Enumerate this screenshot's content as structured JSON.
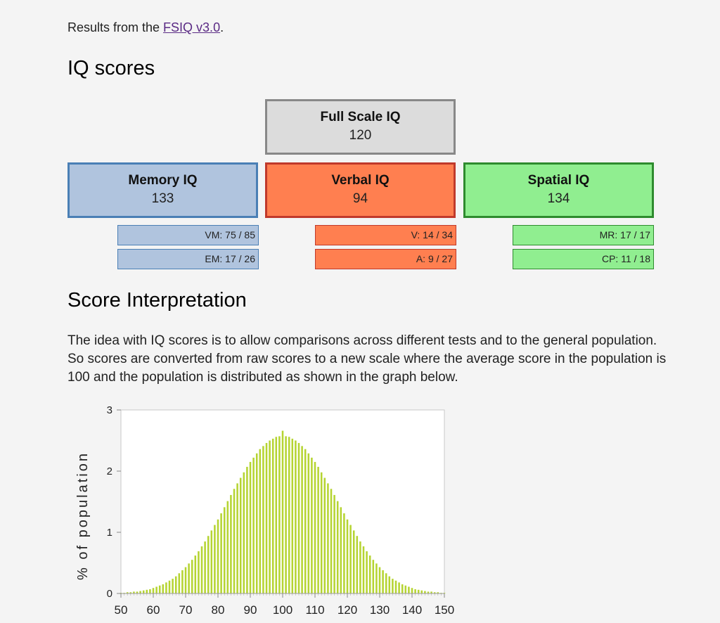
{
  "intro": {
    "prefix": "Results from the ",
    "link_text": "FSIQ v3.0",
    "suffix": "."
  },
  "headings": {
    "iq_scores": "IQ scores",
    "interpretation": "Score Interpretation"
  },
  "scores": {
    "full_scale": {
      "label": "Full Scale IQ",
      "value": "120"
    },
    "memory": {
      "label": "Memory IQ",
      "value": "133"
    },
    "verbal": {
      "label": "Verbal IQ",
      "value": "94"
    },
    "spatial": {
      "label": "Spatial IQ",
      "value": "134"
    }
  },
  "subscores": {
    "memory": [
      "VM: 75 / 85",
      "EM: 17 / 26"
    ],
    "verbal": [
      "V: 14 / 34",
      "A: 9 / 27"
    ],
    "spatial": [
      "MR: 17 / 17",
      "CP: 11 / 18"
    ]
  },
  "colors": {
    "memory_fill": "#b0c4de",
    "verbal_fill": "#ff7f50",
    "spatial_fill": "#90ee90",
    "fsiq_fill": "#dcdcdc",
    "bar": "#b5d431"
  },
  "paragraph": "The idea with IQ scores is to allow comparisons across different tests and to the general population. So scores are converted from raw scores to a new scale where the average score in the population is 100 and the population is distributed as shown in the graph below.",
  "chart_data": {
    "type": "bar",
    "title": "",
    "xlabel": "",
    "ylabel": "% of population",
    "xlim": [
      50,
      150
    ],
    "ylim": [
      0,
      3
    ],
    "x_ticks": [
      50,
      60,
      70,
      80,
      90,
      100,
      110,
      120,
      130,
      140,
      150
    ],
    "y_ticks": [
      0,
      1,
      2,
      3
    ],
    "distribution": {
      "mean": 100,
      "sd": 15
    },
    "x": [
      50,
      51,
      52,
      53,
      54,
      55,
      56,
      57,
      58,
      59,
      60,
      61,
      62,
      63,
      64,
      65,
      66,
      67,
      68,
      69,
      70,
      71,
      72,
      73,
      74,
      75,
      76,
      77,
      78,
      79,
      80,
      81,
      82,
      83,
      84,
      85,
      86,
      87,
      88,
      89,
      90,
      91,
      92,
      93,
      94,
      95,
      96,
      97,
      98,
      99,
      100,
      101,
      102,
      103,
      104,
      105,
      106,
      107,
      108,
      109,
      110,
      111,
      112,
      113,
      114,
      115,
      116,
      117,
      118,
      119,
      120,
      121,
      122,
      123,
      124,
      125,
      126,
      127,
      128,
      129,
      130,
      131,
      132,
      133,
      134,
      135,
      136,
      137,
      138,
      139,
      140,
      141,
      142,
      143,
      144,
      145,
      146,
      147,
      148,
      149,
      150
    ],
    "values": [
      0.01,
      0.01,
      0.02,
      0.02,
      0.03,
      0.03,
      0.04,
      0.05,
      0.06,
      0.07,
      0.09,
      0.11,
      0.13,
      0.15,
      0.18,
      0.21,
      0.24,
      0.28,
      0.33,
      0.38,
      0.43,
      0.49,
      0.55,
      0.62,
      0.69,
      0.77,
      0.85,
      0.94,
      1.03,
      1.12,
      1.21,
      1.31,
      1.41,
      1.51,
      1.61,
      1.71,
      1.8,
      1.89,
      1.98,
      2.07,
      2.15,
      2.22,
      2.29,
      2.36,
      2.41,
      2.46,
      2.5,
      2.53,
      2.56,
      2.57,
      2.66,
      2.57,
      2.56,
      2.53,
      2.5,
      2.46,
      2.41,
      2.36,
      2.29,
      2.22,
      2.15,
      2.07,
      1.98,
      1.89,
      1.8,
      1.71,
      1.61,
      1.51,
      1.41,
      1.31,
      1.21,
      1.12,
      1.03,
      0.94,
      0.85,
      0.77,
      0.69,
      0.62,
      0.55,
      0.49,
      0.43,
      0.38,
      0.33,
      0.28,
      0.24,
      0.21,
      0.18,
      0.15,
      0.13,
      0.11,
      0.09,
      0.07,
      0.06,
      0.05,
      0.04,
      0.03,
      0.03,
      0.02,
      0.02,
      0.01,
      0.01
    ],
    "grid": false,
    "legend": "none"
  }
}
